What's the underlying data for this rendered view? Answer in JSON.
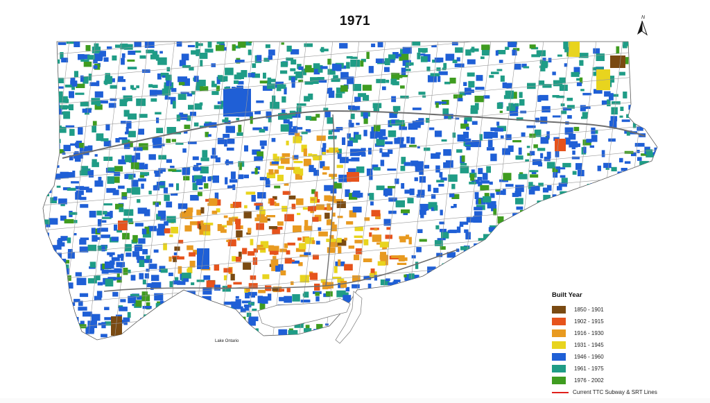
{
  "map": {
    "title": "1971",
    "north_label": "N",
    "lake_label": "Lake Ontario",
    "colors": {
      "background": "#ffffff",
      "roads": "#9a9a9a",
      "highway": "#6e6e6e",
      "outline": "#5a5a5a"
    }
  },
  "legend": {
    "title": "Built Year",
    "items": [
      {
        "label": "1850 - 1901",
        "color": "#7a4a12"
      },
      {
        "label": "1902 - 1915",
        "color": "#e6531c"
      },
      {
        "label": "1916 - 1930",
        "color": "#e89a20"
      },
      {
        "label": "1931 - 1945",
        "color": "#e8d41e"
      },
      {
        "label": "1946 - 1960",
        "color": "#1f5fd6"
      },
      {
        "label": "1961 - 1975",
        "color": "#1f9c86"
      },
      {
        "label": "1976 - 2002",
        "color": "#3f9c20"
      }
    ],
    "line_label": "Current TTC Subway & SRT Lines",
    "line_color": "#e0201a"
  }
}
